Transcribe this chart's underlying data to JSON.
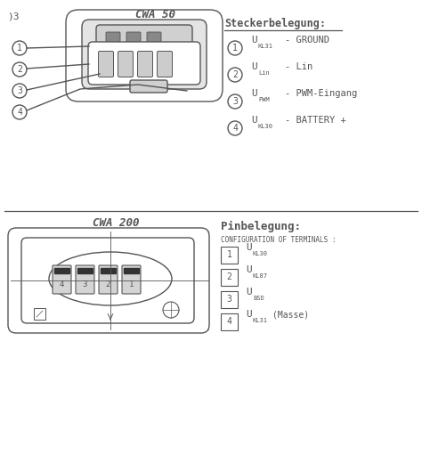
{
  "line_color": "#555555",
  "title_cwa50": "CWA 50",
  "title_cwa200": "CWA 200",
  "stecker_title": "Steckerbelegung:",
  "pin_title": "Pinbelegung:",
  "config_title": "CONFIGURATION OF TERMINALS :",
  "stecker_items": [
    {
      "num": "1",
      "sub": "KL31",
      "base": "U",
      "desc": "- GROUND"
    },
    {
      "num": "2",
      "sub": "Lin",
      "base": "U",
      "desc": "- Lin"
    },
    {
      "num": "3",
      "sub": "PWM",
      "base": "U",
      "desc": "- PWM-Eingang"
    },
    {
      "num": "4",
      "sub": "KL30",
      "base": "U",
      "desc": "- BATTERY +"
    }
  ],
  "pin_items": [
    {
      "num": "1",
      "sub": "KL30",
      "base": "U",
      "extra": ""
    },
    {
      "num": "2",
      "sub": "KL87",
      "base": "U",
      "extra": ""
    },
    {
      "num": "3",
      "sub": "BSD",
      "base": "U",
      "extra": ""
    },
    {
      "num": "4",
      "sub": "KL31",
      "base": "U",
      "extra": "(Masse)"
    }
  ]
}
